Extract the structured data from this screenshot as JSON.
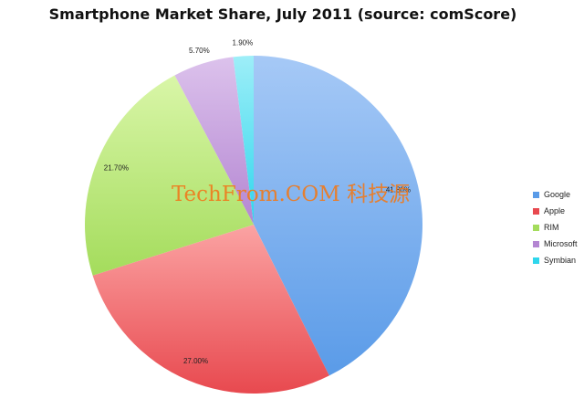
{
  "chart_data": {
    "type": "pie",
    "title": "Smartphone Market Share, July 2011 (source: comScore)",
    "slices": [
      {
        "label": "Google",
        "value": 41.8,
        "display": "41.80%",
        "color": "#5a9be8",
        "color_light": "#a6c9f6"
      },
      {
        "label": "Apple",
        "value": 27.0,
        "display": "27.00%",
        "color": "#e8494f",
        "color_light": "#fba3a3"
      },
      {
        "label": "RIM",
        "value": 21.7,
        "display": "21.70%",
        "color": "#a4dc5c",
        "color_light": "#d9f6a8"
      },
      {
        "label": "Microsoft",
        "value": 5.7,
        "display": "5.70%",
        "color": "#b486d2",
        "color_light": "#dcc2ec"
      },
      {
        "label": "Symbian",
        "value": 1.9,
        "display": "1.90%",
        "color": "#2fd6ec",
        "color_light": "#9eeef8"
      }
    ],
    "legend_position": "right"
  },
  "watermark": "TechFrom.COM 科技源"
}
